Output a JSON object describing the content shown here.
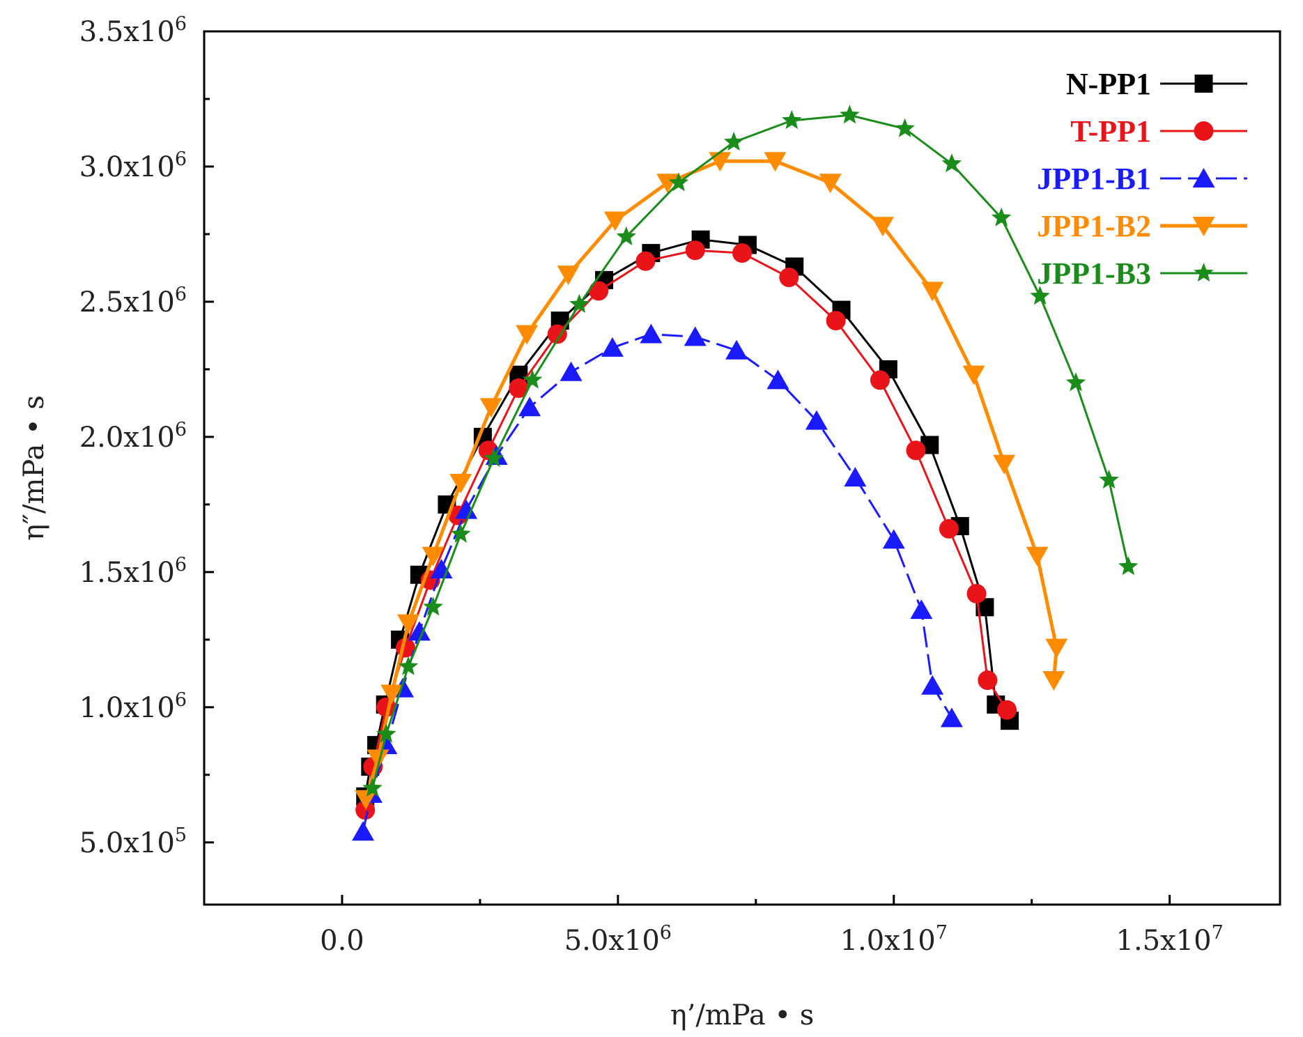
{
  "chart_data": {
    "type": "line",
    "title": "",
    "xlabel": "η’/mPa • s",
    "ylabel": "η″/mPa • s",
    "xlim": [
      -2500000,
      17000000
    ],
    "ylim": [
      270000,
      3500000
    ],
    "xticks": [
      0,
      5000000,
      10000000,
      15000000
    ],
    "xtick_labels": [
      {
        "mant": "0.0",
        "exp": ""
      },
      {
        "mant": "5.0x10",
        "exp": "6"
      },
      {
        "mant": "1.0x10",
        "exp": "7"
      },
      {
        "mant": "1.5x10",
        "exp": "7"
      }
    ],
    "yticks": [
      500000,
      1000000,
      1500000,
      2000000,
      2500000,
      3000000,
      3500000
    ],
    "ytick_labels": [
      {
        "mant": "5.0x10",
        "exp": "5"
      },
      {
        "mant": "1.0x10",
        "exp": "6"
      },
      {
        "mant": "1.5x10",
        "exp": "6"
      },
      {
        "mant": "2.0x10",
        "exp": "6"
      },
      {
        "mant": "2.5x10",
        "exp": "6"
      },
      {
        "mant": "3.0x10",
        "exp": "6"
      },
      {
        "mant": "3.5x10",
        "exp": "6"
      }
    ],
    "legend_position": "top-right",
    "series": [
      {
        "name": "N-PP1",
        "color": "#000000",
        "marker": "square",
        "dash": "solid",
        "x": [
          420000,
          510000,
          620000,
          780000,
          1050000,
          1400000,
          1900000,
          2550000,
          3200000,
          3950000,
          4750000,
          5600000,
          6500000,
          7350000,
          8200000,
          9050000,
          9900000,
          10650000,
          11200000,
          11650000,
          11850000,
          12100000
        ],
        "y": [
          670000,
          780000,
          860000,
          1010000,
          1250000,
          1490000,
          1750000,
          2000000,
          2230000,
          2430000,
          2580000,
          2680000,
          2730000,
          2710000,
          2630000,
          2470000,
          2250000,
          1970000,
          1670000,
          1370000,
          1010000,
          950000
        ]
      },
      {
        "name": "T-PP1",
        "color": "#e8141a",
        "marker": "circle",
        "dash": "solid",
        "x": [
          420000,
          560000,
          800000,
          1150000,
          1600000,
          2100000,
          2650000,
          3200000,
          3900000,
          4650000,
          5500000,
          6400000,
          7250000,
          8100000,
          8950000,
          9750000,
          10400000,
          11000000,
          11500000,
          11700000,
          12050000
        ],
        "y": [
          620000,
          780000,
          1000000,
          1220000,
          1470000,
          1710000,
          1950000,
          2180000,
          2380000,
          2540000,
          2650000,
          2690000,
          2680000,
          2590000,
          2430000,
          2210000,
          1950000,
          1660000,
          1420000,
          1100000,
          990000
        ]
      },
      {
        "name": "JPP1-B1",
        "color": "#1a1aff",
        "marker": "triangle-up",
        "dash": "dashed",
        "x": [
          380000,
          530000,
          800000,
          1100000,
          1400000,
          1800000,
          2250000,
          2800000,
          3400000,
          4150000,
          4900000,
          5600000,
          6400000,
          7150000,
          7900000,
          8600000,
          9300000,
          10000000,
          10500000,
          10700000,
          11050000
        ],
        "y": [
          540000,
          680000,
          860000,
          1070000,
          1280000,
          1510000,
          1730000,
          1930000,
          2110000,
          2240000,
          2330000,
          2380000,
          2370000,
          2320000,
          2210000,
          2060000,
          1850000,
          1620000,
          1360000,
          1080000,
          960000
        ]
      },
      {
        "name": "JPP1-B2",
        "color": "#ff8c00",
        "marker": "triangle-down",
        "dash": "solid",
        "x": [
          430000,
          650000,
          900000,
          1200000,
          1650000,
          2150000,
          2700000,
          3350000,
          4100000,
          4950000,
          5900000,
          6850000,
          7850000,
          8850000,
          9800000,
          10700000,
          11450000,
          12000000,
          12600000,
          12950000,
          12900000
        ],
        "y": [
          660000,
          810000,
          1050000,
          1310000,
          1560000,
          1830000,
          2110000,
          2380000,
          2600000,
          2800000,
          2940000,
          3020000,
          3020000,
          2940000,
          2780000,
          2540000,
          2230000,
          1900000,
          1560000,
          1220000,
          1100000
        ]
      },
      {
        "name": "JPP1-B3",
        "color": "#1a8c1a",
        "marker": "star",
        "dash": "solid",
        "x": [
          550000,
          800000,
          1200000,
          1650000,
          2150000,
          2750000,
          3450000,
          4300000,
          5150000,
          6100000,
          7100000,
          8150000,
          9200000,
          10200000,
          11050000,
          11950000,
          12650000,
          13300000,
          13900000,
          14250000
        ],
        "y": [
          700000,
          900000,
          1150000,
          1370000,
          1640000,
          1920000,
          2210000,
          2490000,
          2740000,
          2940000,
          3090000,
          3170000,
          3190000,
          3140000,
          3010000,
          2810000,
          2520000,
          2200000,
          1840000,
          1520000
        ]
      }
    ]
  }
}
